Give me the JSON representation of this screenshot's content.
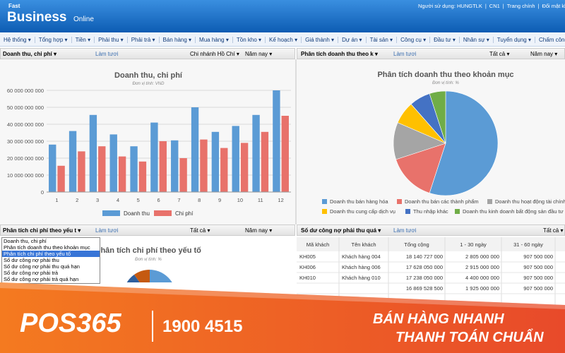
{
  "header": {
    "logo_top": "Fast",
    "logo_main": "Business",
    "logo_sub": "Online",
    "links": [
      "Người sử dụng: HUNGTLK",
      "CN1",
      "Trang chính",
      "Đổi mật khẩu"
    ]
  },
  "menu": [
    "Hệ thống",
    "Tổng hợp",
    "Tiền",
    "Phải thu",
    "Phải trả",
    "Bán hàng",
    "Mua hàng",
    "Tồn kho",
    "Kế hoạch",
    "Giá thành",
    "Dự án",
    "Tài sản",
    "Công cụ",
    "Đầu tư",
    "Nhân sự",
    "Tuyển dụng",
    "Chấm công"
  ],
  "toolbars": [
    [
      "Doanh thu, chi phí",
      "Làm tươi",
      "Chi nhánh Hồ Chí",
      "Năm nay"
    ],
    [
      "Phân tích doanh thu theo k",
      "Làm tươi",
      "Tất cả",
      "Năm nay"
    ],
    [
      "Phân tích chi phí theo yếu t",
      "Làm tươi",
      "Tất cả",
      "Năm nay"
    ],
    [
      "Số dư công nợ phải thu quá",
      "Làm tươi",
      "Tất cả"
    ]
  ],
  "chart_data": [
    {
      "type": "bar",
      "title": "Doanh thu, chi phí",
      "subtitle": "Đơn vị tính: VND",
      "categories": [
        "1",
        "2",
        "3",
        "4",
        "5",
        "6",
        "7",
        "8",
        "9",
        "10",
        "11",
        "12"
      ],
      "series": [
        {
          "name": "Doanh thu",
          "color": "#5b9bd5",
          "values": [
            28000000000,
            36000000000,
            45500000000,
            34000000000,
            27000000000,
            41000000000,
            30500000000,
            50000000000,
            35500000000,
            39000000000,
            45500000000,
            60000000000
          ]
        },
        {
          "name": "Chi phí",
          "color": "#e8726b",
          "values": [
            15500000000,
            24000000000,
            27000000000,
            21000000000,
            18000000000,
            30000000000,
            20000000000,
            31000000000,
            26000000000,
            29000000000,
            35500000000,
            45000000000
          ]
        }
      ],
      "ylim": [
        0,
        60000000000
      ],
      "yticks": [
        0,
        {
          "value": 10000000000,
          "label": "10 000 000 000"
        },
        {
          "value": 20000000000,
          "label": "20 000 000 000"
        },
        {
          "value": 30000000000,
          "label": "30 000 000 000"
        },
        {
          "value": 40000000000,
          "label": "40 000 000 000"
        },
        {
          "value": 50000000000,
          "label": "50 000 000 000"
        },
        {
          "value": 60000000000,
          "label": "60 000 000 000"
        }
      ],
      "grid": true
    },
    {
      "type": "pie",
      "title": "Phân tích doanh thu theo khoản mục",
      "subtitle": "Đơn vị tính: %",
      "categories": [
        "Doanh thu bán hàng hóa",
        "Doanh thu bán các thành phẩm",
        "Doanh thu hoạt động tài chính",
        "Doanh thu cung cấp dịch vụ",
        "Thu nhập khác",
        "Doanh thu kinh doanh bất động sản đầu tư"
      ],
      "values": [
        55,
        15,
        11.5,
        7,
        6.5,
        5
      ],
      "colors": [
        "#5b9bd5",
        "#e8726b",
        "#a5a5a5",
        "#ffc000",
        "#4472c4",
        "#70ad47"
      ]
    }
  ],
  "dropdown": {
    "items": [
      "Doanh thu, chi phí",
      "Phân tích doanh thu theo khoản mục",
      "Phân tích chi phí theo yếu tố",
      "Số dư công nợ phải thu",
      "Số dư công nợ phải thu quá hạn",
      "Số dư công nợ phải trả",
      "Số dư công nợ phải trả quá hạn"
    ],
    "selected": 2
  },
  "cost_chart": {
    "title": "Phân tích chi phí theo yếu tố",
    "subtitle": "Đơn vị tính: %"
  },
  "table": {
    "columns": [
      "Mã khách",
      "Tên khách",
      "Tổng cộng",
      "1 - 30 ngày",
      "31 - 60 ngày"
    ],
    "rows": [
      [
        "KH005",
        "Khách hàng 004",
        "18 140 727 000",
        "2 805 000 000",
        "907 500 000"
      ],
      [
        "KH006",
        "Khách hàng 006",
        "17 628 050 000",
        "2 915 000 000",
        "907 500 000"
      ],
      [
        "KH010",
        "Khách hàng 010",
        "17 238 050 000",
        "4 400 000 000",
        "907 500 000"
      ],
      [
        null,
        null,
        "16 869 528 500",
        "1 925 000 000",
        "907 500 000"
      ]
    ]
  },
  "banner": {
    "brand": "POS365",
    "phone": "1900 4515",
    "slogan1": "BÁN HÀNG NHANH",
    "slogan2": "THANH TOÁN CHUẨN"
  }
}
